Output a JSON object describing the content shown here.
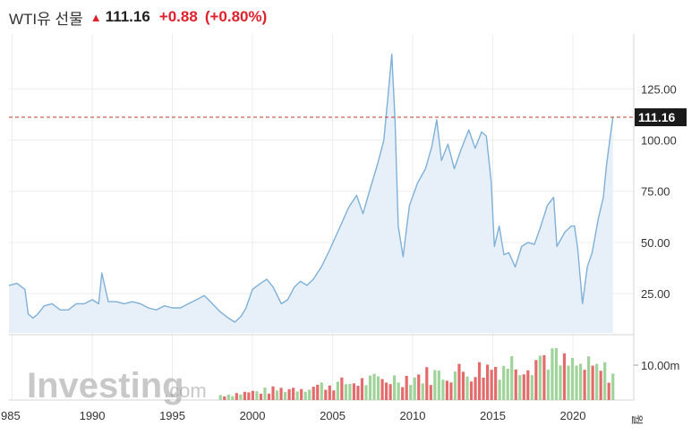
{
  "header": {
    "title": "WTI유 선물",
    "price": "111.16",
    "change": "+0.88",
    "change_pct": "(+0.80%)",
    "direction_icon": "arrow-up-icon"
  },
  "watermark": {
    "main": "Investing",
    "suffix": ".com"
  },
  "y_axis_labels": [
    "125.00",
    "100.00",
    "75.00",
    "50.00",
    "25.00"
  ],
  "volume_axis_label": "10.00m",
  "x_axis_labels": [
    "985",
    "1990",
    "1995",
    "2000",
    "2005",
    "2010",
    "2015",
    "2020"
  ],
  "x_axis_end_label": "월",
  "current_price_label": "111.16",
  "colors": {
    "line": "#7fb0d8",
    "area": "#e4eef7",
    "up": "#e0212b",
    "price_line": "#c0392b",
    "vol_up": "#9fd39a",
    "vol_down": "#e46b6b"
  },
  "chart_data": {
    "type": "area",
    "title": "",
    "xlabel": "",
    "ylabel": "",
    "ylim": [
      0,
      145
    ],
    "xlim": [
      1984.8,
      2023.8
    ],
    "current_value": 111.16,
    "series": [
      {
        "x": [
          1984.8,
          1985.3,
          1985.8,
          1986.0,
          1986.3,
          1986.6,
          1987.0,
          1987.5,
          1988.0,
          1988.5,
          1989.0,
          1989.5,
          1990.0,
          1990.4,
          1990.6,
          1990.8,
          1991.0,
          1991.5,
          1992.0,
          1992.5,
          1993.0,
          1993.5,
          1994.0,
          1994.5,
          1995.0,
          1995.5,
          1996.0,
          1996.5,
          1997.0,
          1997.5,
          1998.0,
          1998.5,
          1998.9,
          1999.3,
          1999.6,
          2000.0,
          2000.5,
          2000.9,
          2001.3,
          2001.8,
          2002.2,
          2002.6,
          2003.0,
          2003.4,
          2003.8,
          2004.3,
          2004.8,
          2005.2,
          2005.6,
          2006.0,
          2006.5,
          2006.9,
          2007.3,
          2007.8,
          2008.2,
          2008.5,
          2008.7,
          2008.9,
          2009.1,
          2009.4,
          2009.8,
          2010.3,
          2010.8,
          2011.2,
          2011.5,
          2011.8,
          2012.2,
          2012.6,
          2013.0,
          2013.5,
          2013.9,
          2014.3,
          2014.6,
          2014.9,
          2015.1,
          2015.4,
          2015.7,
          2016.0,
          2016.4,
          2016.8,
          2017.2,
          2017.6,
          2018.0,
          2018.4,
          2018.8,
          2019.0,
          2019.5,
          2019.9,
          2020.1,
          2020.3,
          2020.6,
          2020.9,
          2021.2,
          2021.6,
          2021.9,
          2022.1,
          2022.3,
          2022.5
        ],
        "values": [
          29,
          30,
          27,
          15,
          13,
          15,
          19,
          20,
          17,
          17,
          20,
          20,
          22,
          20,
          35,
          28,
          21,
          21,
          20,
          21,
          20,
          18,
          17,
          19,
          18,
          18,
          20,
          22,
          24,
          20,
          16,
          13,
          11,
          14,
          18,
          27,
          30,
          32,
          28,
          20,
          22,
          28,
          31,
          29,
          32,
          38,
          46,
          53,
          60,
          67,
          73,
          64,
          75,
          88,
          100,
          125,
          142,
          110,
          58,
          43,
          68,
          79,
          86,
          97,
          110,
          90,
          98,
          86,
          95,
          105,
          96,
          104,
          102,
          80,
          48,
          58,
          44,
          45,
          38,
          48,
          50,
          49,
          58,
          68,
          72,
          48,
          55,
          58,
          58,
          47,
          20,
          38,
          45,
          62,
          72,
          88,
          100,
          111.16
        ]
      }
    ],
    "volume": {
      "x_start": 1998.0,
      "x_end": 2022.5,
      "count": 98,
      "unit": "m",
      "tick": 10
    }
  }
}
